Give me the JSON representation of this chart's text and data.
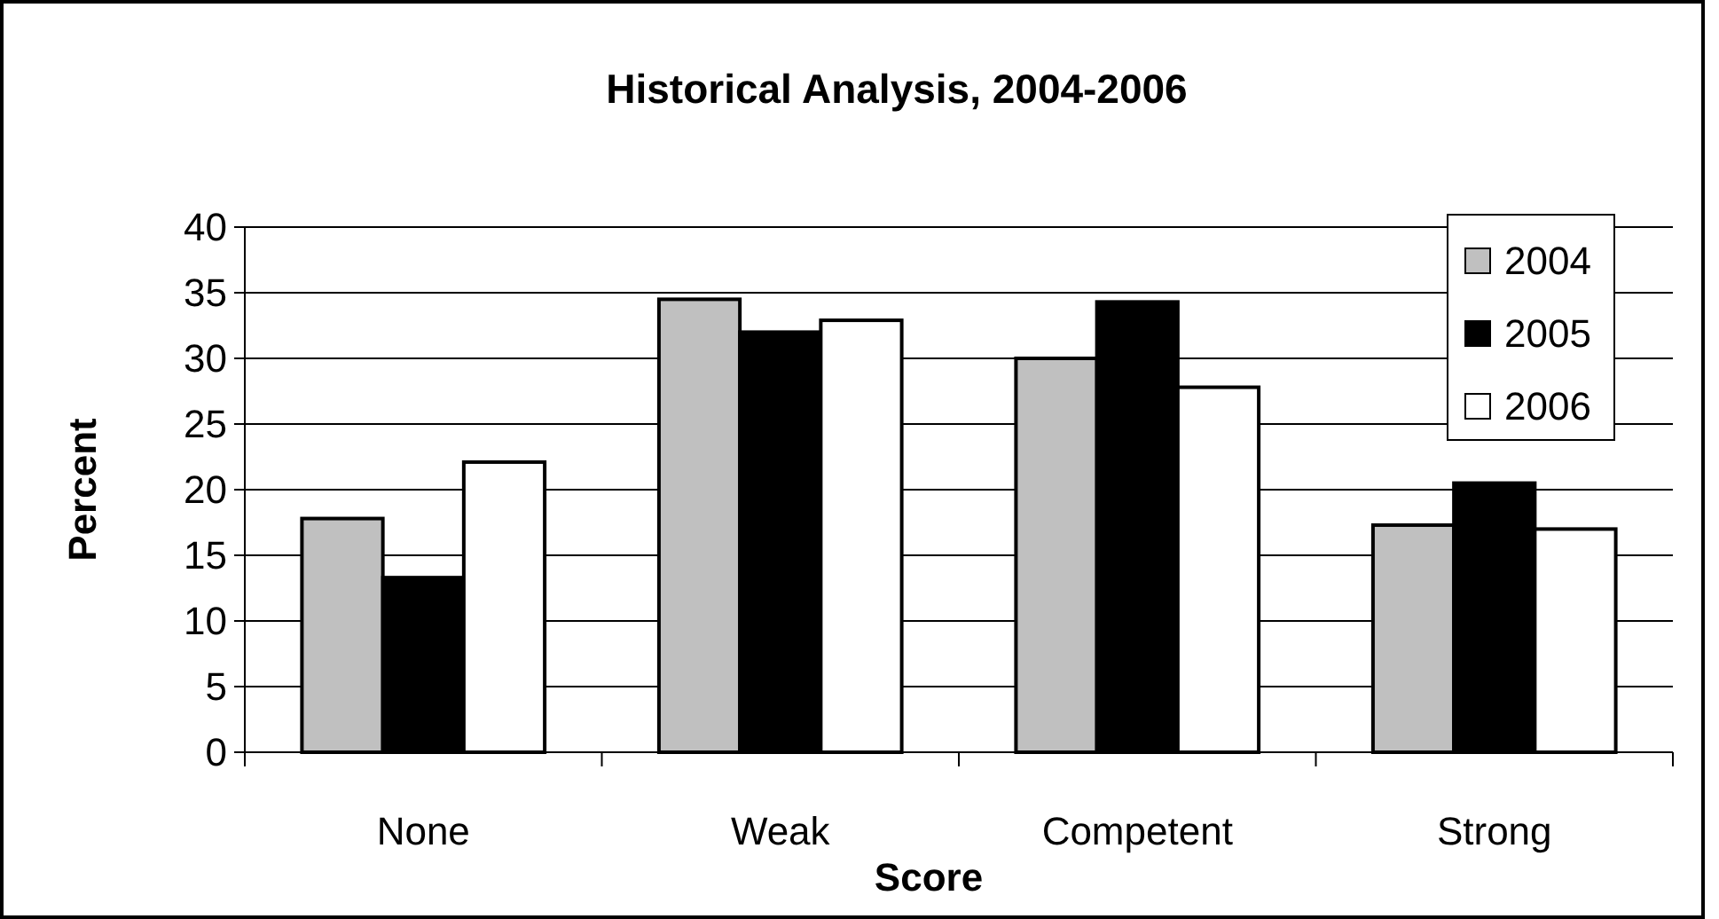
{
  "chart_data": {
    "type": "bar",
    "title": "Historical Analysis, 2004-2006",
    "xlabel": "Score",
    "ylabel": "Percent",
    "categories": [
      "None",
      "Weak",
      "Competent",
      "Strong"
    ],
    "series": [
      {
        "name": "2004",
        "color": "#c0c0c0",
        "values": [
          17.8,
          34.5,
          30.0,
          17.3
        ]
      },
      {
        "name": "2005",
        "color": "#000000",
        "values": [
          13.3,
          32.0,
          34.3,
          20.5
        ]
      },
      {
        "name": "2006",
        "color": "#ffffff",
        "values": [
          22.1,
          32.9,
          27.8,
          17.0
        ]
      }
    ],
    "ylim": [
      0,
      40
    ],
    "yticks": [
      0,
      5,
      10,
      15,
      20,
      25,
      30,
      35,
      40
    ],
    "grid": "y",
    "legend": "top right"
  }
}
